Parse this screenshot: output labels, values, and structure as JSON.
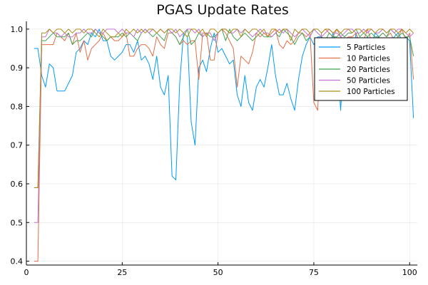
{
  "chart_data": {
    "type": "line",
    "title": "PGAS Update Rates",
    "xlabel": "",
    "ylabel": "",
    "xlim": [
      0,
      102
    ],
    "ylim": [
      0.39,
      1.02
    ],
    "xticks": [
      0,
      25,
      50,
      75,
      100
    ],
    "yticks": [
      0.4,
      0.5,
      0.6,
      0.7,
      0.8,
      0.9,
      1.0
    ],
    "ytick_labels": [
      "0.4",
      "0.5",
      "0.6",
      "0.7",
      "0.8",
      "0.9",
      "1.0"
    ],
    "grid": true,
    "legend_position": "right",
    "x": [
      2,
      3,
      4,
      5,
      6,
      7,
      8,
      9,
      10,
      11,
      12,
      13,
      14,
      15,
      16,
      17,
      18,
      19,
      20,
      21,
      22,
      23,
      24,
      25,
      26,
      27,
      28,
      29,
      30,
      31,
      32,
      33,
      34,
      35,
      36,
      37,
      38,
      39,
      40,
      41,
      42,
      43,
      44,
      45,
      46,
      47,
      48,
      49,
      50,
      51,
      52,
      53,
      54,
      55,
      56,
      57,
      58,
      59,
      60,
      61,
      62,
      63,
      64,
      65,
      66,
      67,
      68,
      69,
      70,
      71,
      72,
      73,
      74,
      75,
      76,
      77,
      78,
      79,
      80,
      81,
      82,
      83,
      84,
      85,
      86,
      87,
      88,
      89,
      90,
      91,
      92,
      93,
      94,
      95,
      96,
      97,
      98,
      99,
      100,
      101
    ],
    "series": [
      {
        "name": "5 Particles",
        "color": "#009AFA",
        "values": [
          0.95,
          0.95,
          0.88,
          0.85,
          0.91,
          0.9,
          0.84,
          0.84,
          0.84,
          0.86,
          0.88,
          0.94,
          0.95,
          0.97,
          0.96,
          0.99,
          0.98,
          1.0,
          0.97,
          0.97,
          0.93,
          0.92,
          0.93,
          0.94,
          0.96,
          0.96,
          0.94,
          0.97,
          0.92,
          0.93,
          0.91,
          0.87,
          0.93,
          0.85,
          0.83,
          0.88,
          0.62,
          0.61,
          0.86,
          0.99,
          0.98,
          0.76,
          0.7,
          0.9,
          0.92,
          0.89,
          0.95,
          0.99,
          0.94,
          0.95,
          0.93,
          0.91,
          0.92,
          0.83,
          0.8,
          0.88,
          0.81,
          0.79,
          0.85,
          0.87,
          0.85,
          0.9,
          0.96,
          0.88,
          0.83,
          0.83,
          0.86,
          0.82,
          0.79,
          0.87,
          0.93,
          0.96,
          0.98,
          0.96,
          0.98,
          0.98,
          0.97,
          0.95,
          0.99,
          0.95,
          0.79,
          0.96,
          0.97,
          0.91,
          0.99,
          0.95,
          0.96,
          0.98,
          0.96,
          0.99,
          0.98,
          0.96,
          0.97,
          0.97,
          0.98,
          0.99,
          0.97,
          0.98,
          0.97,
          0.77
        ]
      },
      {
        "name": "10 Particles",
        "color": "#E26F46",
        "values": [
          0.4,
          0.4,
          0.96,
          0.96,
          0.96,
          0.96,
          0.99,
          0.98,
          0.97,
          0.99,
          0.96,
          0.99,
          0.94,
          0.97,
          0.92,
          0.95,
          0.96,
          0.97,
          0.99,
          0.97,
          0.98,
          0.97,
          0.97,
          0.98,
          0.99,
          0.93,
          0.93,
          0.95,
          0.96,
          0.96,
          0.95,
          0.93,
          0.98,
          0.96,
          0.95,
          0.99,
          0.99,
          0.98,
          0.96,
          0.97,
          0.96,
          0.97,
          0.97,
          0.87,
          0.99,
          0.99,
          0.92,
          0.92,
          0.99,
          1.0,
          0.99,
          0.97,
          0.95,
          0.85,
          0.93,
          0.92,
          0.91,
          0.94,
          0.99,
          0.98,
          0.99,
          0.98,
          0.99,
          1.0,
          0.96,
          0.95,
          0.97,
          0.96,
          0.97,
          0.99,
          0.99,
          0.98,
          0.99,
          0.81,
          0.79,
          0.99,
          1.0,
          0.99,
          0.98,
          1.0,
          0.98,
          0.97,
          0.98,
          0.98,
          0.99,
          0.96,
          0.97,
          1.0,
          0.97,
          0.97,
          0.98,
          0.99,
          0.98,
          0.99,
          0.97,
          0.98,
          1.0,
          0.97,
          0.99,
          0.87
        ]
      },
      {
        "name": "20 Particles",
        "color": "#3EA44E",
        "values": [
          0.59,
          0.59,
          0.97,
          0.97,
          0.98,
          0.99,
          0.98,
          0.98,
          0.98,
          0.99,
          0.96,
          0.97,
          0.97,
          0.98,
          0.99,
          0.98,
          1.0,
          0.99,
          0.98,
          0.97,
          0.98,
          0.98,
          0.98,
          0.99,
          0.98,
          0.99,
          0.98,
          0.97,
          0.99,
          1.0,
          0.99,
          0.98,
          0.99,
          0.98,
          0.97,
          1.0,
          0.99,
          0.98,
          0.96,
          0.98,
          1.0,
          0.96,
          0.97,
          0.99,
          0.98,
          0.99,
          0.98,
          0.98,
          0.99,
          1.0,
          0.97,
          1.0,
          0.98,
          0.97,
          0.98,
          0.99,
          0.98,
          0.97,
          0.98,
          0.99,
          0.98,
          0.98,
          0.98,
          0.99,
          0.98,
          1.0,
          0.99,
          0.98,
          0.96,
          0.98,
          0.99,
          0.97,
          0.98,
          1.0,
          0.99,
          0.98,
          0.97,
          0.99,
          0.98,
          0.98,
          0.99,
          0.98,
          0.99,
          0.99,
          1.0,
          0.98,
          0.99,
          0.98,
          0.99,
          0.98,
          0.98,
          0.99,
          0.98,
          1.0,
          0.99,
          0.98,
          0.99,
          0.98,
          0.98,
          0.93
        ]
      },
      {
        "name": "50 Particles",
        "color": "#C371D2",
        "values": [
          0.5,
          0.5,
          0.98,
          0.98,
          1.0,
          0.99,
          0.99,
          0.98,
          0.99,
          0.98,
          0.98,
          0.99,
          0.99,
          1.0,
          0.99,
          0.99,
          1.0,
          0.99,
          0.99,
          1.0,
          1.0,
          1.0,
          0.99,
          1.0,
          0.99,
          0.99,
          0.98,
          1.0,
          0.99,
          1.0,
          0.99,
          1.0,
          0.99,
          1.0,
          0.99,
          1.0,
          0.99,
          1.0,
          0.98,
          0.99,
          1.0,
          1.0,
          0.99,
          1.0,
          0.98,
          0.99,
          0.99,
          0.97,
          0.99,
          1.0,
          1.0,
          0.99,
          0.99,
          1.0,
          0.99,
          1.0,
          0.99,
          0.98,
          0.99,
          1.0,
          0.99,
          0.99,
          0.98,
          0.99,
          1.0,
          0.99,
          1.0,
          0.99,
          0.98,
          0.99,
          1.0,
          0.99,
          0.98,
          1.0,
          0.99,
          0.98,
          0.99,
          1.0,
          0.99,
          0.99,
          0.98,
          0.99,
          1.0,
          1.0,
          0.99,
          0.99,
          1.0,
          0.99,
          1.0,
          0.99,
          0.99,
          1.0,
          0.99,
          1.0,
          0.99,
          1.0,
          1.0,
          0.99,
          0.98,
          0.99
        ]
      },
      {
        "name": "100 Particles",
        "color": "#AC8D18",
        "values": [
          0.59,
          0.59,
          0.99,
          0.99,
          1.0,
          0.99,
          1.0,
          1.0,
          0.99,
          1.0,
          0.99,
          1.0,
          1.0,
          0.99,
          1.0,
          1.0,
          0.99,
          0.98,
          1.0,
          0.99,
          0.98,
          0.98,
          0.99,
          0.98,
          1.0,
          0.99,
          1.0,
          0.99,
          1.0,
          0.99,
          1.0,
          1.0,
          0.99,
          1.0,
          0.99,
          1.0,
          1.0,
          0.99,
          1.0,
          0.99,
          0.98,
          1.0,
          1.0,
          0.99,
          1.0,
          0.98,
          1.0,
          1.0,
          0.99,
          1.0,
          1.0,
          0.99,
          1.0,
          1.0,
          0.98,
          1.0,
          0.99,
          1.0,
          1.0,
          0.99,
          1.0,
          0.98,
          1.0,
          1.0,
          0.99,
          1.0,
          1.0,
          0.97,
          1.0,
          0.99,
          1.0,
          1.0,
          0.99,
          1.0,
          1.0,
          0.99,
          1.0,
          1.0,
          0.99,
          1.0,
          0.99,
          1.0,
          1.0,
          0.99,
          1.0,
          1.0,
          0.99,
          1.0,
          1.0,
          0.99,
          1.0,
          1.0,
          0.99,
          1.0,
          1.0,
          0.99,
          1.0,
          0.99,
          1.0,
          0.99
        ]
      }
    ]
  }
}
